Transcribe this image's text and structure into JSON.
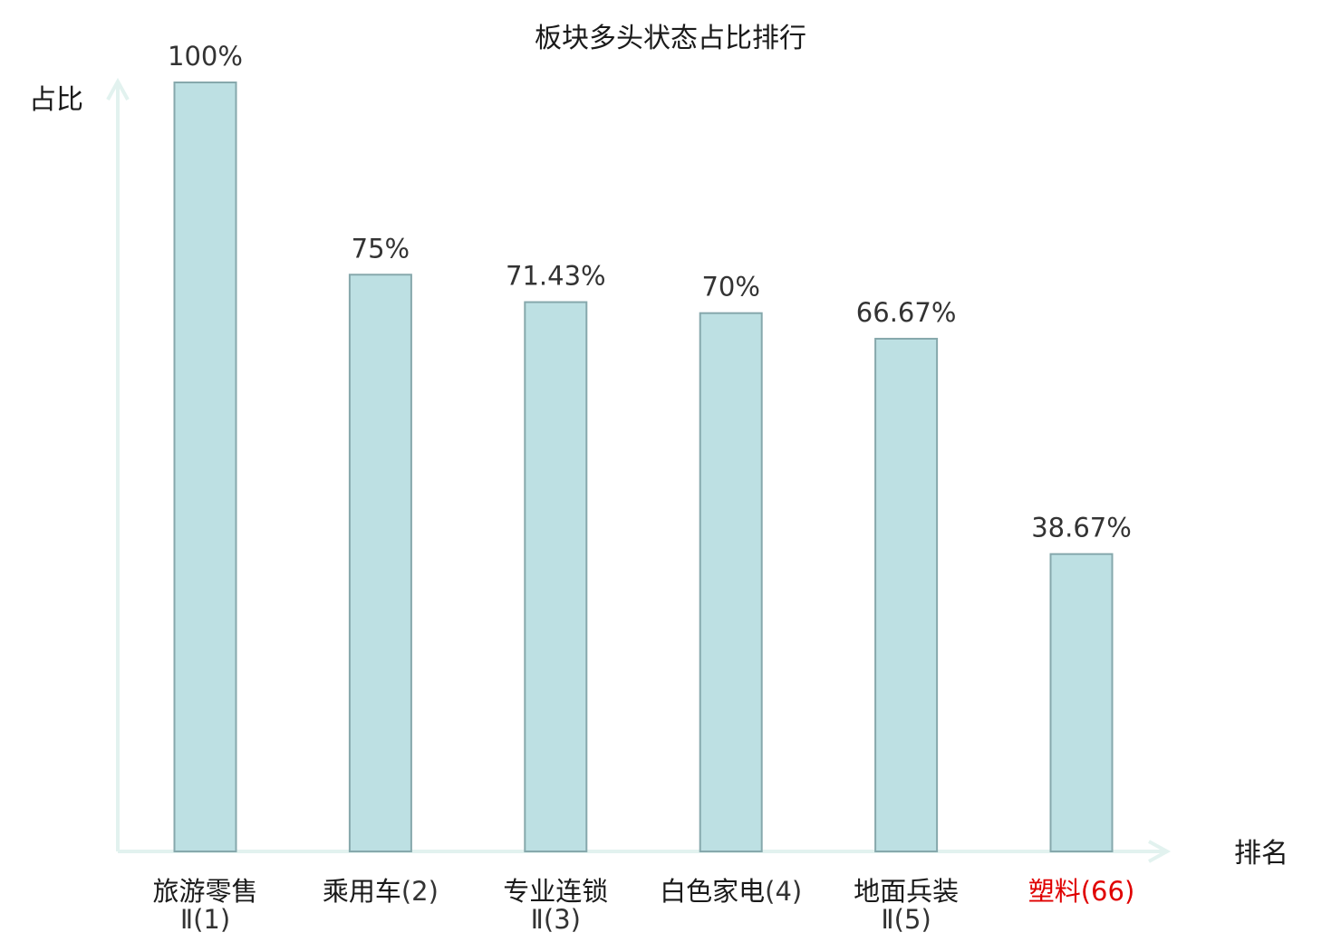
{
  "chart_data": {
    "type": "bar",
    "title": "板块多头状态占比排行",
    "ylabel": "占比",
    "xlabel": "排名",
    "ylim": [
      0,
      100
    ],
    "grid": false,
    "categories": [
      {
        "name": "旅游零售",
        "rank": "Ⅱ(1)",
        "highlight": false
      },
      {
        "name": "乘用车",
        "rank": "(2)",
        "highlight": false
      },
      {
        "name": "专业连锁",
        "rank": "Ⅱ(3)",
        "highlight": false
      },
      {
        "name": "白色家电",
        "rank": "(4)",
        "highlight": false
      },
      {
        "name": "地面兵装",
        "rank": "Ⅱ(5)",
        "highlight": false
      },
      {
        "name": "塑料",
        "rank": "(66)",
        "highlight": true
      }
    ],
    "values": [
      100,
      75,
      71.43,
      70,
      66.67,
      38.67
    ],
    "value_labels": [
      "100%",
      "75%",
      "71.43%",
      "70%",
      "66.67%",
      "38.67%"
    ]
  },
  "colors": {
    "bar_fill": "#bde0e3",
    "bar_stroke": "#86a8ac",
    "axis": "#e2f2ef",
    "highlight": "#e00000",
    "category_text": "#1a1a1a",
    "category_rank_text": "#333333"
  }
}
